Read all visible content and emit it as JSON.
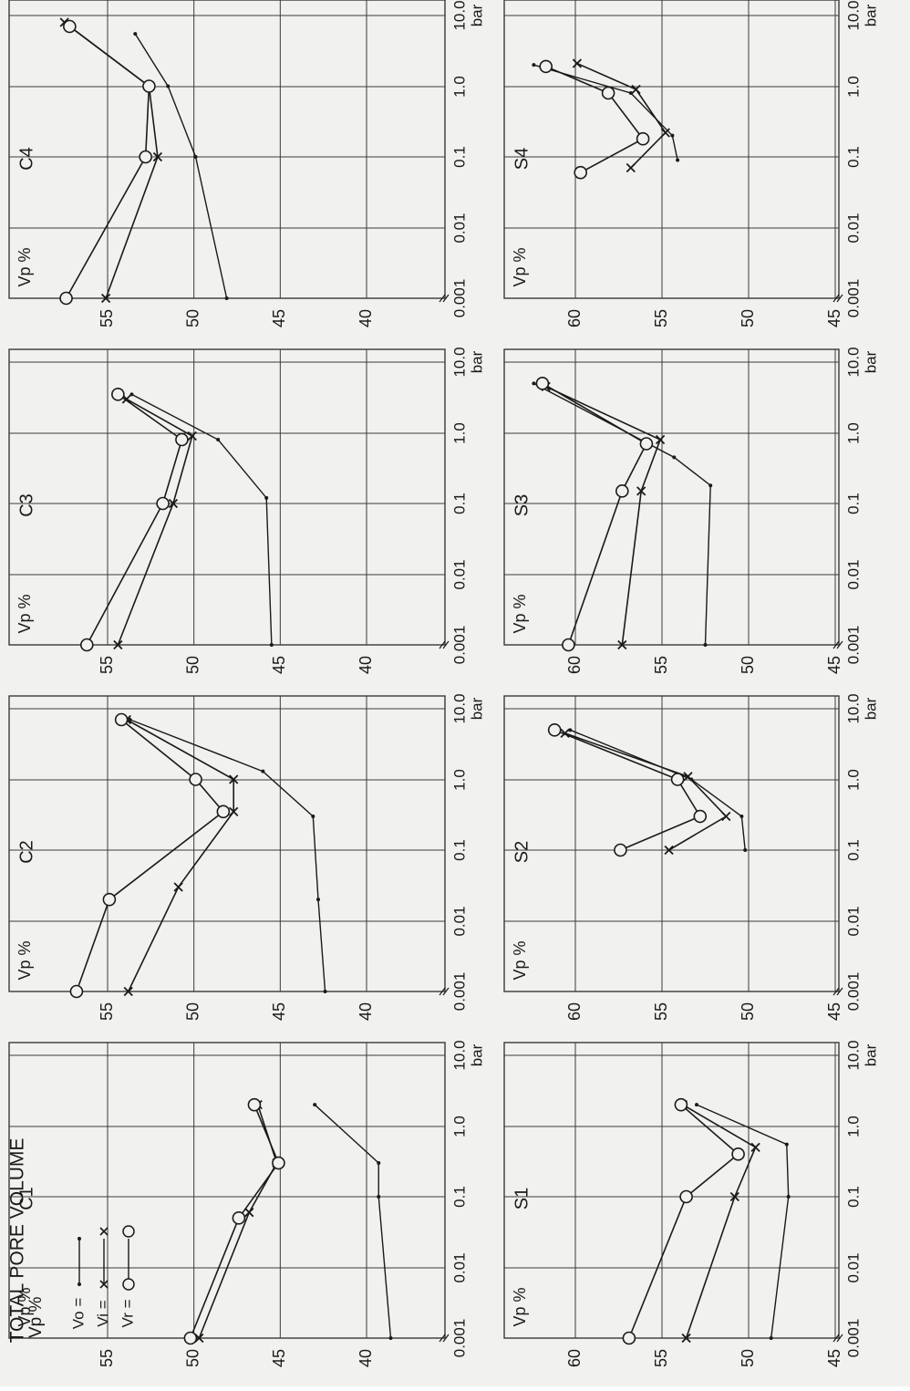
{
  "figure": {
    "title": "TOTAL PORE VOLUME",
    "ylabel": "Vp %",
    "unit": "bar",
    "legend": [
      {
        "label": "Vo =",
        "marker": "dot",
        "series": "Vo"
      },
      {
        "label": "Vi =",
        "marker": "cross",
        "series": "Vi"
      },
      {
        "label": "Vr =",
        "marker": "circle",
        "series": "Vr"
      }
    ],
    "colors": {
      "ink": "#1a1a1a",
      "paper": "#f1f1ef",
      "grid": "#3a3a3a"
    }
  },
  "chart_data": [
    {
      "type": "line",
      "panel": "C1",
      "title": "C1",
      "ylabel": "Vp %",
      "xlabel": "bar",
      "xscale": "log",
      "xlim": [
        0.001,
        10.0
      ],
      "xticks": [
        "0.001",
        "0.01",
        "0.1",
        "1.0",
        "10.0"
      ],
      "yticks": [
        "55",
        "50",
        "45",
        "40"
      ],
      "ylim": [
        37,
        58
      ],
      "series": [
        {
          "name": "Vo",
          "x": [
            0.001,
            0.1,
            0.3,
            2.0
          ],
          "y": [
            38.6,
            39.3,
            39.3,
            43.0
          ]
        },
        {
          "name": "Vi",
          "x": [
            0.001,
            0.06,
            0.3,
            2.0
          ],
          "y": [
            49.7,
            46.8,
            45.2,
            46.3
          ]
        },
        {
          "name": "Vr",
          "x": [
            0.001,
            0.05,
            0.3,
            2.0
          ],
          "y": [
            50.2,
            47.4,
            45.1,
            46.5
          ]
        }
      ]
    },
    {
      "type": "line",
      "panel": "C2",
      "title": "C2",
      "ylabel": "Vp %",
      "xlabel": "bar",
      "xscale": "log",
      "xlim": [
        0.001,
        10.0
      ],
      "xticks": [
        "0.001",
        "0.01",
        "0.1",
        "1.0",
        "10.0"
      ],
      "yticks": [
        "55",
        "50",
        "45",
        "40"
      ],
      "ylim": [
        37,
        58
      ],
      "series": [
        {
          "name": "Vo",
          "x": [
            0.001,
            0.02,
            0.3,
            1.3,
            7.0
          ],
          "y": [
            42.4,
            42.8,
            43.1,
            46.0,
            53.7
          ]
        },
        {
          "name": "Vi",
          "x": [
            0.001,
            0.03,
            0.35,
            1.0,
            7.0
          ],
          "y": [
            53.8,
            50.9,
            47.7,
            47.7,
            53.9
          ]
        },
        {
          "name": "Vr",
          "x": [
            0.001,
            0.02,
            0.35,
            1.0,
            7.0
          ],
          "y": [
            56.8,
            54.9,
            48.3,
            49.9,
            54.2
          ]
        }
      ]
    },
    {
      "type": "line",
      "panel": "C3",
      "title": "C3",
      "ylabel": "Vp %",
      "xlabel": "bar",
      "xscale": "log",
      "xlim": [
        0.001,
        10.0
      ],
      "xticks": [
        "0.001",
        "0.01",
        "0.1",
        "1.0",
        "10.0"
      ],
      "yticks": [
        "55",
        "50",
        "45",
        "40"
      ],
      "ylim": [
        37,
        58
      ],
      "series": [
        {
          "name": "Vo",
          "x": [
            0.001,
            0.12,
            0.8,
            3.5
          ],
          "y": [
            45.5,
            45.8,
            48.6,
            53.6
          ]
        },
        {
          "name": "Vi",
          "x": [
            0.001,
            0.1,
            0.9,
            3.0
          ],
          "y": [
            54.4,
            51.2,
            50.1,
            53.9
          ]
        },
        {
          "name": "Vr",
          "x": [
            0.001,
            0.1,
            0.8,
            3.5
          ],
          "y": [
            56.2,
            51.8,
            50.7,
            54.4
          ]
        }
      ]
    },
    {
      "type": "line",
      "panel": "C4",
      "title": "C4",
      "ylabel": "Vp %",
      "xlabel": "bar",
      "xscale": "log",
      "xlim": [
        0.001,
        10.0
      ],
      "xticks": [
        "0.001",
        "0.01",
        "0.1",
        "1.0",
        "10.0"
      ],
      "yticks": [
        "55",
        "50",
        "45",
        "40"
      ],
      "ylim": [
        37,
        58
      ],
      "series": [
        {
          "name": "Vo",
          "x": [
            0.001,
            0.1,
            1.0,
            5.5
          ],
          "y": [
            48.1,
            49.9,
            51.5,
            53.4
          ]
        },
        {
          "name": "Vi",
          "x": [
            0.001,
            0.1,
            1.0,
            8.0
          ],
          "y": [
            55.1,
            52.1,
            52.6,
            57.5
          ]
        },
        {
          "name": "Vr",
          "x": [
            0.001,
            0.1,
            1.0,
            7.0
          ],
          "y": [
            57.4,
            52.8,
            52.6,
            57.2
          ]
        }
      ]
    },
    {
      "type": "line",
      "panel": "S1",
      "title": "S1",
      "ylabel": "Vp %",
      "xlabel": "bar",
      "xscale": "log",
      "xlim": [
        0.001,
        10.0
      ],
      "xticks": [
        "0.001",
        "0.01",
        "0.1",
        "1.0",
        "10.0"
      ],
      "yticks": [
        "60",
        "55",
        "50",
        "45"
      ],
      "ylim": [
        43,
        63
      ],
      "series": [
        {
          "name": "Vo",
          "x": [
            0.001,
            0.1,
            0.55,
            2.0
          ],
          "y": [
            48.7,
            47.7,
            47.8,
            53.0
          ]
        },
        {
          "name": "Vi",
          "x": [
            0.001,
            0.1,
            0.5,
            2.0
          ],
          "y": [
            53.6,
            50.8,
            49.6,
            53.8
          ]
        },
        {
          "name": "Vr",
          "x": [
            0.001,
            0.1,
            0.4,
            2.0
          ],
          "y": [
            56.9,
            53.6,
            50.6,
            53.9
          ]
        }
      ]
    },
    {
      "type": "line",
      "panel": "S2",
      "title": "S2",
      "ylabel": "Vp %",
      "xlabel": "bar",
      "xscale": "log",
      "xlim": [
        0.001,
        10.0
      ],
      "xticks": [
        "0.001",
        "0.01",
        "0.1",
        "1.0",
        "10.0"
      ],
      "yticks": [
        "60",
        "55",
        "50",
        "45"
      ],
      "ylim": [
        43,
        63
      ],
      "series": [
        {
          "name": "Vo",
          "x": [
            0.1,
            0.3,
            1.0,
            5.0
          ],
          "y": [
            50.2,
            50.4,
            53.3,
            60.3
          ]
        },
        {
          "name": "Vi",
          "x": [
            0.1,
            0.3,
            1.1,
            4.5
          ],
          "y": [
            54.6,
            51.3,
            53.5,
            60.6
          ]
        },
        {
          "name": "Vr",
          "x": [
            0.1,
            0.3,
            1.0,
            5.0
          ],
          "y": [
            57.4,
            52.8,
            54.1,
            61.2
          ]
        }
      ]
    },
    {
      "type": "line",
      "panel": "S3",
      "title": "S3",
      "ylabel": "Vp %",
      "xlabel": "bar",
      "xscale": "log",
      "xlim": [
        0.001,
        10.0
      ],
      "xticks": [
        "0.001",
        "0.01",
        "0.1",
        "1.0",
        "10.0"
      ],
      "yticks": [
        "60",
        "55",
        "50",
        "45"
      ],
      "ylim": [
        43,
        63
      ],
      "series": [
        {
          "name": "Vo",
          "x": [
            0.001,
            0.18,
            0.45,
            5.0
          ],
          "y": [
            52.5,
            52.2,
            54.3,
            62.4
          ]
        },
        {
          "name": "Vi",
          "x": [
            0.001,
            0.15,
            0.8,
            4.5
          ],
          "y": [
            57.3,
            56.2,
            55.1,
            61.7
          ]
        },
        {
          "name": "Vr",
          "x": [
            0.001,
            0.15,
            0.7,
            5.0
          ],
          "y": [
            60.4,
            57.3,
            55.9,
            61.9
          ]
        }
      ]
    },
    {
      "type": "line",
      "panel": "S4",
      "title": "S4",
      "ylabel": "Vp %",
      "xlabel": "bar",
      "xscale": "log",
      "xlim": [
        0.001,
        10.0
      ],
      "xticks": [
        "0.001",
        "0.01",
        "0.1",
        "1.0",
        "10.0"
      ],
      "yticks": [
        "60",
        "55",
        "50",
        "45"
      ],
      "ylim": [
        43,
        63
      ],
      "series": [
        {
          "name": "Vo",
          "x": [
            0.09,
            0.2,
            0.8,
            2.0
          ],
          "y": [
            54.1,
            54.4,
            56.8,
            62.4
          ]
        },
        {
          "name": "Vi",
          "x": [
            0.07,
            0.22,
            0.9,
            2.1
          ],
          "y": [
            56.8,
            54.8,
            56.5,
            59.9
          ]
        },
        {
          "name": "Vr",
          "x": [
            0.06,
            0.18,
            0.8,
            1.9
          ],
          "y": [
            59.7,
            56.1,
            58.1,
            61.7
          ]
        }
      ]
    }
  ]
}
